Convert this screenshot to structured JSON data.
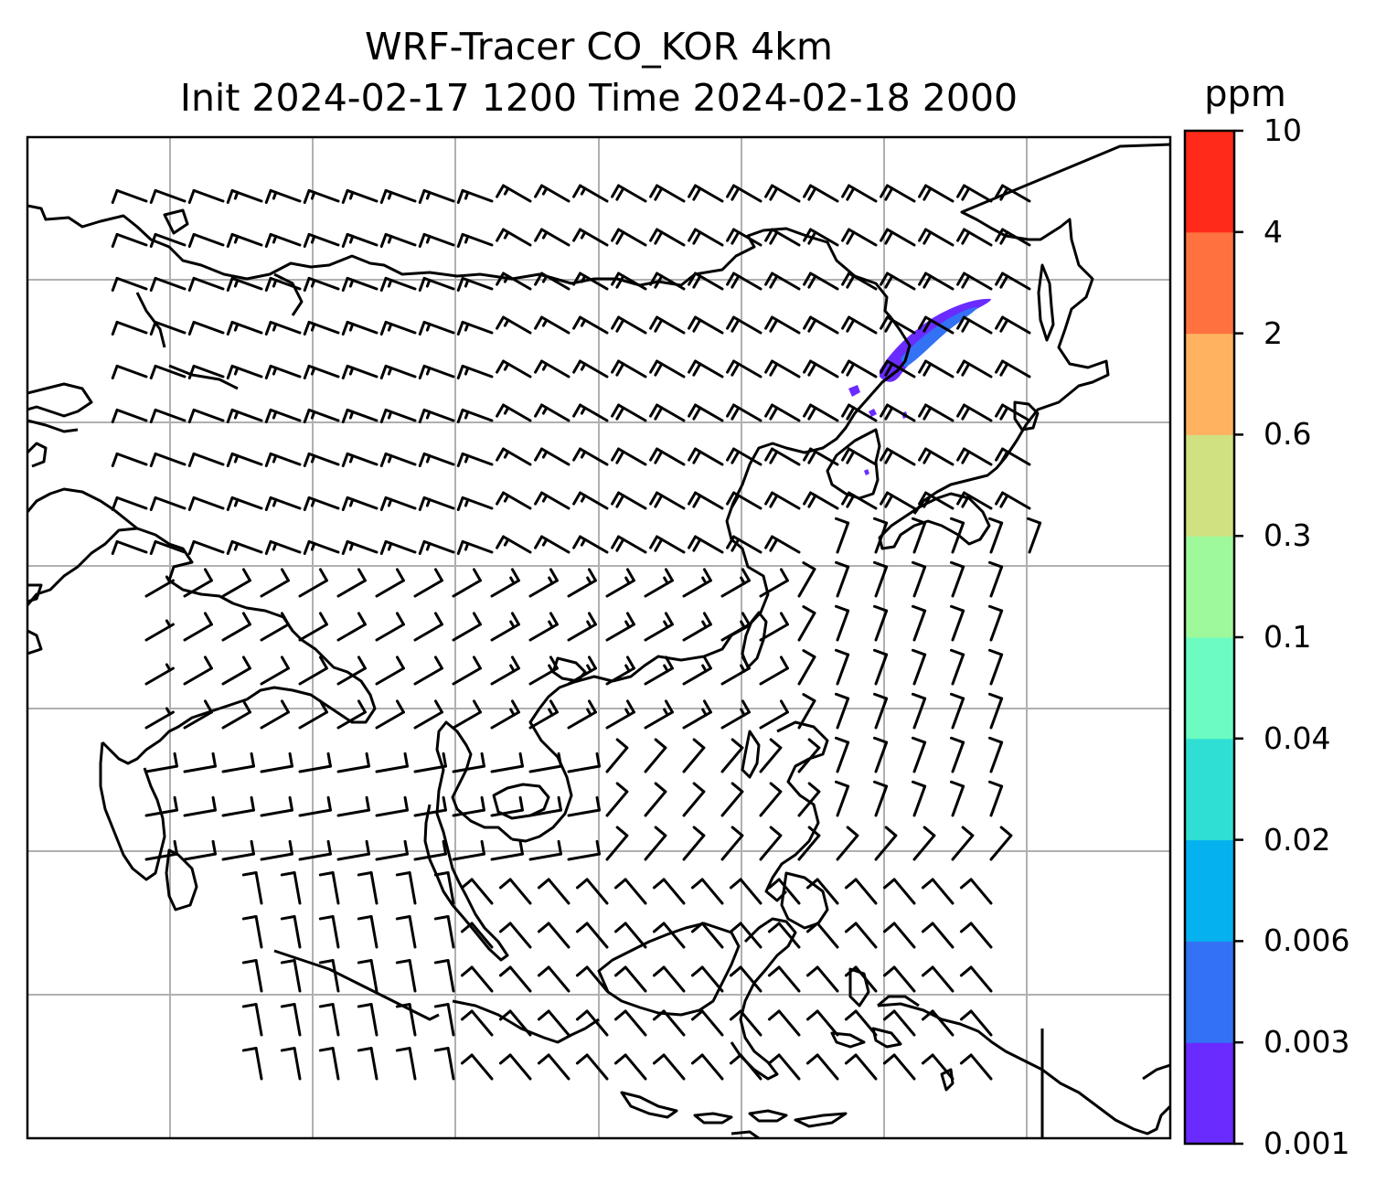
{
  "title_line1": "WRF-Tracer CO_KOR 4km",
  "title_line2": "Init 2024-02-17 1200 Time 2024-02-18 2000",
  "colorbar": {
    "unit": "ppm",
    "labels": [
      "10",
      "4",
      "2",
      "0.6",
      "0.3",
      "0.1",
      "0.04",
      "0.02",
      "0.006",
      "0.003",
      "0.001"
    ],
    "colors": [
      "#6a2bff",
      "#3372f5",
      "#05b1ee",
      "#30dfd4",
      "#6cfbc0",
      "#9ef99b",
      "#d0e182",
      "#ffb260",
      "#ff7240",
      "#ff2a19"
    ]
  },
  "map": {
    "frame_color": "#000000",
    "grid_color": "#b0b0b0",
    "coastline_color": "#000000",
    "wind_barb_color": "#000000",
    "plume_colors": [
      "#6a2bff",
      "#3372f5"
    ]
  }
}
